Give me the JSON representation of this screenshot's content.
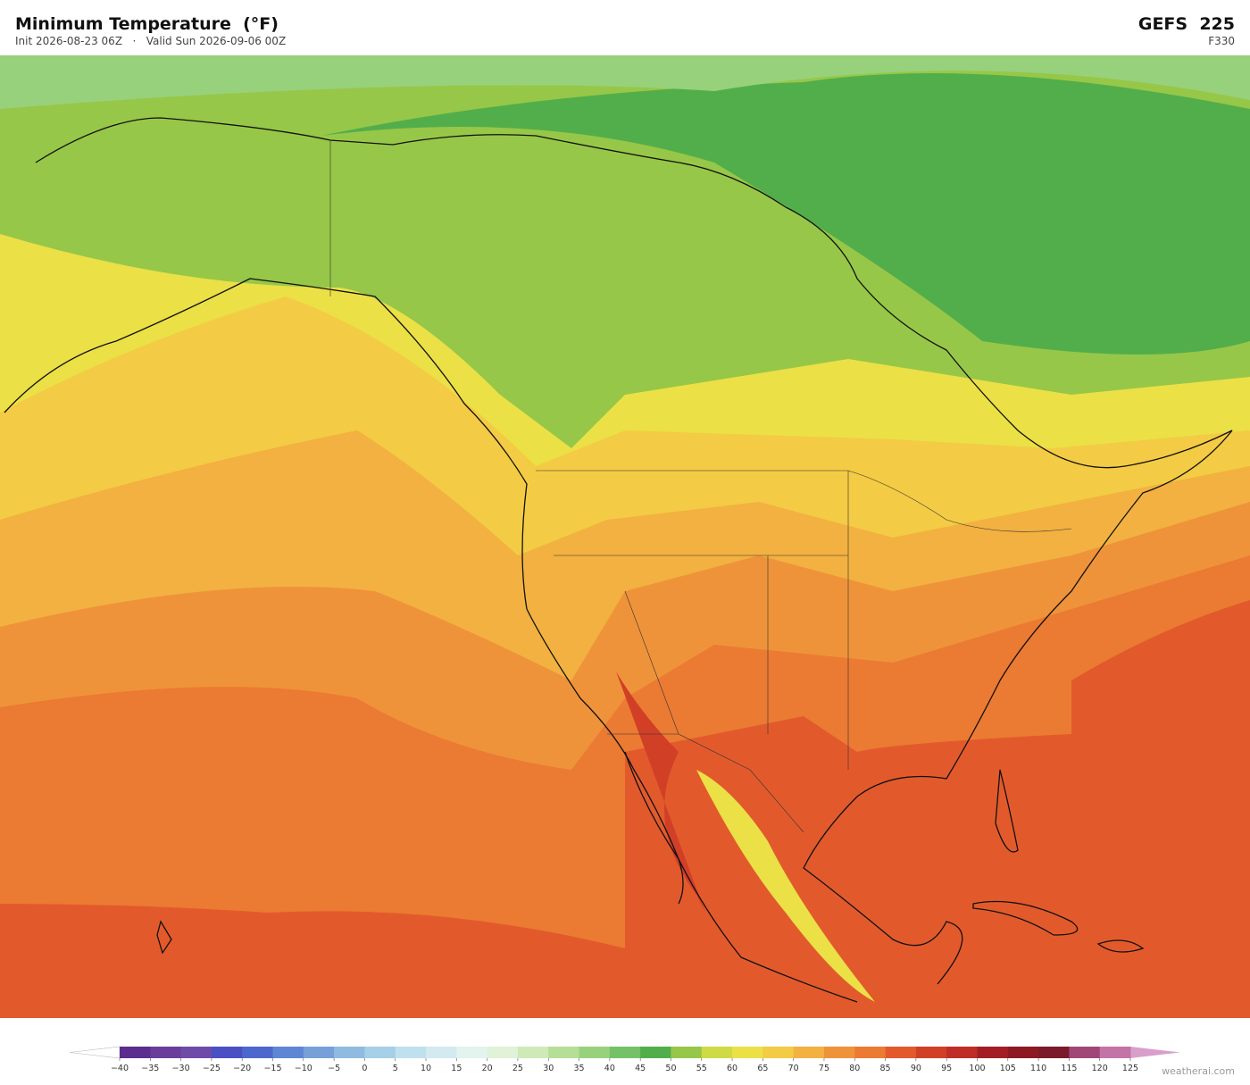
{
  "header": {
    "title": "Minimum Temperature  (°F)",
    "subtitle": "Init 2026-08-23 06Z   ·   Valid Sun 2026-09-06 00Z",
    "model": "GEFS  225",
    "forecast_hour": "F330"
  },
  "colorbar": {
    "ticks": [
      {
        "value": -40,
        "label": "−40"
      },
      {
        "value": -35,
        "label": "−35"
      },
      {
        "value": -30,
        "label": "−30"
      },
      {
        "value": -25,
        "label": "−25"
      },
      {
        "value": -20,
        "label": "−20"
      },
      {
        "value": -15,
        "label": "−15"
      },
      {
        "value": -10,
        "label": "−10"
      },
      {
        "value": -5,
        "label": "−5"
      },
      0,
      5,
      10,
      15,
      20,
      25,
      30,
      35,
      40,
      45,
      50,
      55,
      60,
      65,
      70,
      75,
      80,
      85,
      90,
      95,
      100,
      105,
      110,
      115,
      120,
      125
    ],
    "colors": [
      "#5b2d8e",
      "#6a3d9a",
      "#6f4ba8",
      "#4a4fc4",
      "#4d67cc",
      "#5f86d4",
      "#77a0d8",
      "#8fbbe0",
      "#a6cfe8",
      "#bfe0ee",
      "#d2eaf0",
      "#e3f3ee",
      "#e0f2d8",
      "#cfe9b8",
      "#b5de96",
      "#97d17c",
      "#74c167",
      "#52ae4a",
      "#97c748",
      "#cfda44",
      "#ebe046",
      "#f4cb44",
      "#f2b140",
      "#ef933a",
      "#eb7a33",
      "#e25a2c",
      "#d13f27",
      "#bf2d26",
      "#a21e24",
      "#8d1a22",
      "#7a1a2a",
      "#a04778",
      "#c274a6"
    ],
    "under_color": "#ffffff",
    "over_color": "#d99fcb"
  },
  "footer": {
    "credit": "weatherai.com"
  }
}
